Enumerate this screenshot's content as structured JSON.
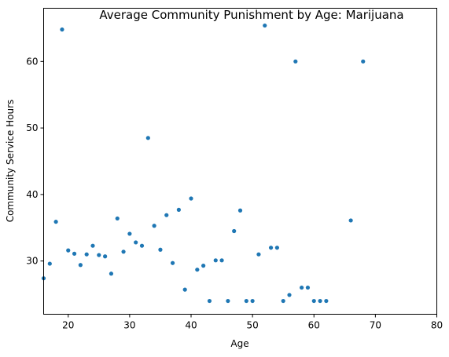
{
  "chart_data": {
    "type": "scatter",
    "title": "Average Community Punishment by Age: Marijuana",
    "xlabel": "Age",
    "ylabel": "Community Service Hours",
    "xlim": [
      16,
      80
    ],
    "ylim": [
      22,
      68
    ],
    "xticks": [
      20,
      30,
      40,
      50,
      60,
      70,
      80
    ],
    "yticks": [
      30,
      40,
      50,
      60
    ],
    "grid": false,
    "marker_color": "#1f77b4",
    "points": [
      {
        "x": 16,
        "y": 27.4
      },
      {
        "x": 17,
        "y": 29.6
      },
      {
        "x": 18,
        "y": 35.9
      },
      {
        "x": 19,
        "y": 64.8
      },
      {
        "x": 20,
        "y": 31.6
      },
      {
        "x": 21,
        "y": 31.1
      },
      {
        "x": 22,
        "y": 29.4
      },
      {
        "x": 23,
        "y": 31.0
      },
      {
        "x": 24,
        "y": 32.3
      },
      {
        "x": 25,
        "y": 30.9
      },
      {
        "x": 26,
        "y": 30.7
      },
      {
        "x": 27,
        "y": 28.1
      },
      {
        "x": 28,
        "y": 36.4
      },
      {
        "x": 29,
        "y": 31.4
      },
      {
        "x": 30,
        "y": 34.1
      },
      {
        "x": 31,
        "y": 32.8
      },
      {
        "x": 32,
        "y": 32.3
      },
      {
        "x": 33,
        "y": 48.5
      },
      {
        "x": 34,
        "y": 35.3
      },
      {
        "x": 35,
        "y": 31.7
      },
      {
        "x": 36,
        "y": 36.9
      },
      {
        "x": 37,
        "y": 29.7
      },
      {
        "x": 38,
        "y": 37.7
      },
      {
        "x": 39,
        "y": 25.7
      },
      {
        "x": 40,
        "y": 39.4
      },
      {
        "x": 41,
        "y": 28.7
      },
      {
        "x": 42,
        "y": 29.3
      },
      {
        "x": 43,
        "y": 24.0
      },
      {
        "x": 44,
        "y": 30.1
      },
      {
        "x": 45,
        "y": 30.1
      },
      {
        "x": 46,
        "y": 24.0
      },
      {
        "x": 47,
        "y": 34.5
      },
      {
        "x": 48,
        "y": 37.6
      },
      {
        "x": 49,
        "y": 24.0
      },
      {
        "x": 50,
        "y": 24.0
      },
      {
        "x": 51,
        "y": 31.0
      },
      {
        "x": 52,
        "y": 65.4
      },
      {
        "x": 53,
        "y": 32.0
      },
      {
        "x": 54,
        "y": 32.0
      },
      {
        "x": 55,
        "y": 24.0
      },
      {
        "x": 56,
        "y": 24.9
      },
      {
        "x": 57,
        "y": 60.0
      },
      {
        "x": 58,
        "y": 26.0
      },
      {
        "x": 59,
        "y": 26.0
      },
      {
        "x": 60,
        "y": 24.0
      },
      {
        "x": 61,
        "y": 24.0
      },
      {
        "x": 62,
        "y": 24.0
      },
      {
        "x": 66,
        "y": 36.1
      },
      {
        "x": 68,
        "y": 60.0
      }
    ]
  }
}
